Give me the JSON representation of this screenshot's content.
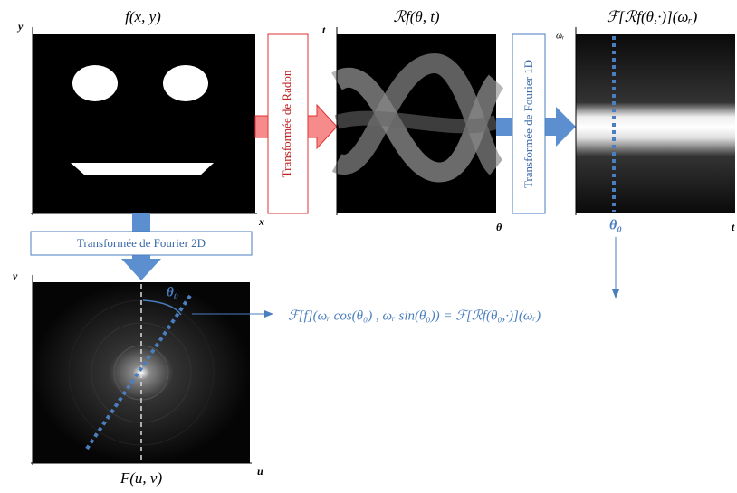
{
  "panels": {
    "spatial": {
      "title": "f(x, y)",
      "y_axis": "y",
      "x_axis": "x"
    },
    "radon": {
      "title": "ℛf(θ, t)",
      "y_axis": "t",
      "x_axis": "θ"
    },
    "fourier_1d": {
      "title": "ℱ[ℛf(θ,·)](ωᵣ)",
      "y_axis": "ωᵣ",
      "x_axis": "t",
      "marker": "θ₀"
    },
    "fourier_2d": {
      "title": "F(u, v)",
      "y_axis": "v",
      "x_axis": "u",
      "angle": "θ₀"
    }
  },
  "transforms": {
    "radon": "Transformée de Radon",
    "fourier_1d": "Transformée de Fourier 1D",
    "fourier_2d": "Transformée de Fourier 2D"
  },
  "formula": "ℱ[f](ωᵣ cos(θ₀) , ωᵣ sin(θ₀)) = ℱ[ℛf(θ₀,·)](ωᵣ)"
}
